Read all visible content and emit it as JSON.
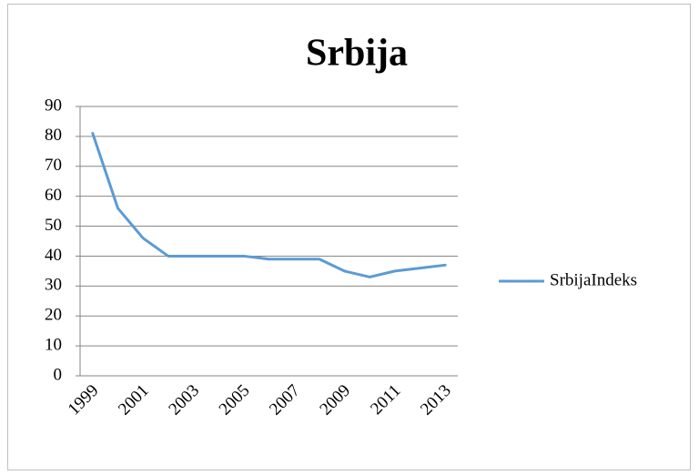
{
  "chart_data": {
    "type": "line",
    "title": "Srbija",
    "categories": [
      "1999",
      null,
      "2001",
      null,
      "2003",
      null,
      "2005",
      null,
      "2007",
      null,
      "2009",
      null,
      "2011",
      null,
      "2013"
    ],
    "series": [
      {
        "name": "SrbijaIndeks",
        "color": "#5b9bd5",
        "values": [
          81,
          56,
          46,
          40,
          40,
          40,
          40,
          39,
          39,
          39,
          35,
          33,
          35,
          36,
          37
        ]
      }
    ],
    "ylim": [
      0,
      90
    ],
    "yticks": [
      0,
      10,
      20,
      30,
      40,
      50,
      60,
      70,
      80,
      90
    ],
    "grid": true,
    "legend": "right"
  }
}
